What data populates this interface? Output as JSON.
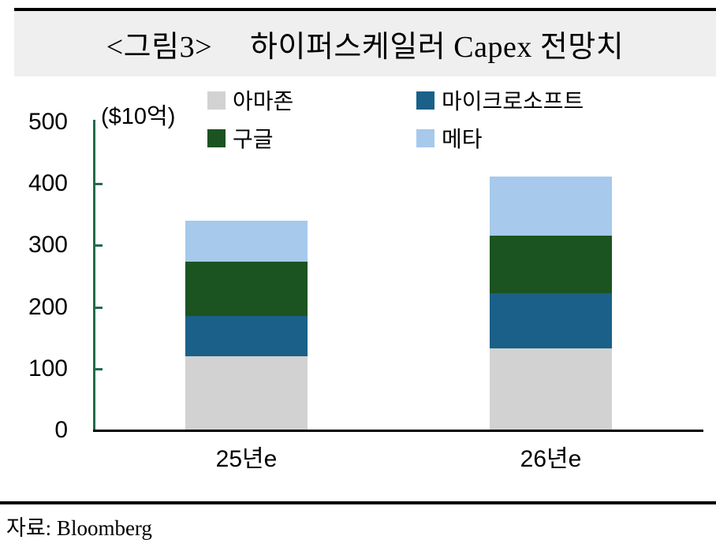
{
  "header": {
    "title_tag": "<그림3>",
    "title_text": "하이퍼스케일러 Capex 전망치"
  },
  "chart_data": {
    "type": "bar",
    "stacked": true,
    "title": "<그림3> 하이퍼스케일러 Capex 전망치",
    "unit_label": "($10억)",
    "categories": [
      "25년e",
      "26년e"
    ],
    "series": [
      {
        "name": "아마존",
        "color": "#d2d2d2",
        "values": [
          120,
          133
        ]
      },
      {
        "name": "마이크로소프트",
        "color": "#1a6088",
        "values": [
          66,
          89
        ]
      },
      {
        "name": "구글",
        "color": "#1b5420",
        "values": [
          88,
          94
        ]
      },
      {
        "name": "메타",
        "color": "#a6c9ec",
        "values": [
          66,
          96
        ]
      }
    ],
    "stack_totals": [
      340,
      412
    ],
    "ylim": [
      0,
      500
    ],
    "y_ticks": [
      0,
      100,
      200,
      300,
      400,
      500
    ],
    "grid": false,
    "legend_position": "top",
    "axis_color": "#236b4b",
    "x_axis_color": "#000000"
  },
  "source": {
    "text": "자료: Bloomberg"
  }
}
